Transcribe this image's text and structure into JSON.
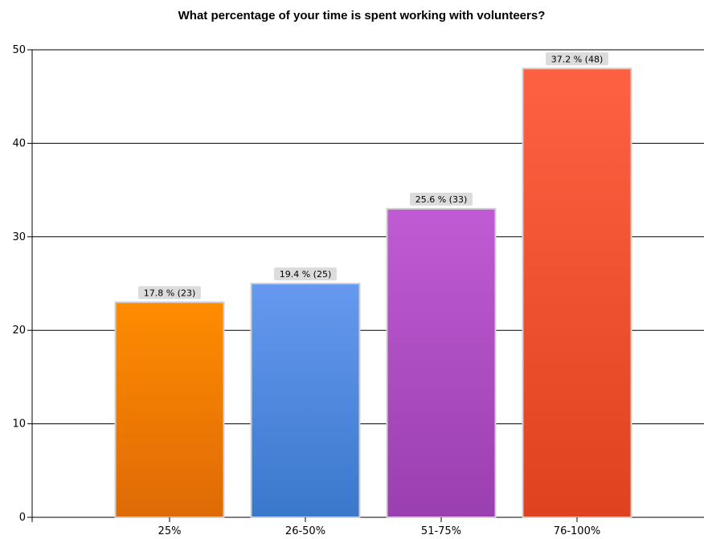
{
  "chart_data": {
    "type": "bar",
    "title": "What percentage of your time is spent working with volunteers?",
    "categories": [
      "25%",
      "26-50%",
      "51-75%",
      "76-100%"
    ],
    "values": [
      23,
      25,
      33,
      48
    ],
    "data_labels": [
      "17.8 % (23)",
      "19.4 % (25)",
      "25.6 % (33)",
      "37.2 % (48)"
    ],
    "xlabel": "",
    "ylabel": "",
    "ylim": [
      0,
      50
    ],
    "yticks": [
      0,
      10,
      20,
      30,
      40,
      50
    ],
    "grid": true,
    "legend": "none",
    "colors": [
      {
        "top": "#ff8c00",
        "bottom": "#de6a07"
      },
      {
        "top": "#6699ef",
        "bottom": "#3a78cb"
      },
      {
        "top": "#c05bd4",
        "bottom": "#9a3fb0"
      },
      {
        "top": "#fe6142",
        "bottom": "#df421e"
      }
    ],
    "label_bg": "#dcdcdc",
    "bar_border": "#d0d0d0"
  }
}
